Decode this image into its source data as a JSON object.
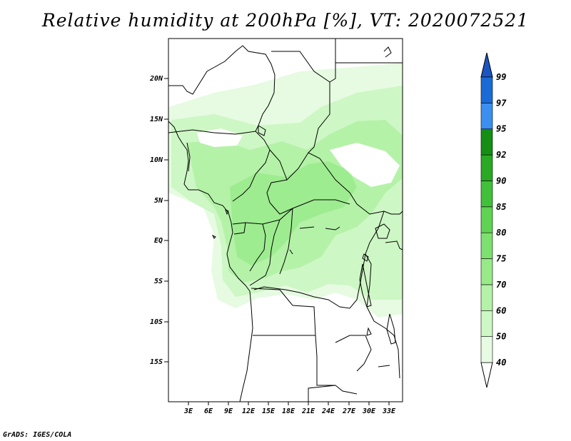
{
  "title": "Relative humidity at 200hPa [%], VT: 2020072521",
  "credit": "GrADS: IGES/COLA",
  "map": {
    "lon_range": [
      0,
      35
    ],
    "lat_range": [
      -20,
      25
    ],
    "lon_ticks": [
      "3E",
      "6E",
      "9E",
      "12E",
      "15E",
      "18E",
      "21E",
      "24E",
      "27E",
      "30E",
      "33E"
    ],
    "lat_ticks": [
      "20N",
      "15N",
      "10N",
      "5N",
      "EQ",
      "5S",
      "10S",
      "15S"
    ]
  },
  "colorbar": {
    "levels": [
      "40",
      "50",
      "60",
      "70",
      "75",
      "80",
      "85",
      "90",
      "92",
      "95",
      "97",
      "99"
    ],
    "colors": [
      "#ffffff",
      "#e6fbe1",
      "#cdf7c4",
      "#b4f2a8",
      "#98ea89",
      "#7ee06e",
      "#5fd352",
      "#41c13a",
      "#2aa925",
      "#148f14",
      "#3b8ff0",
      "#1a6bd6",
      "#1a55c2"
    ]
  }
}
